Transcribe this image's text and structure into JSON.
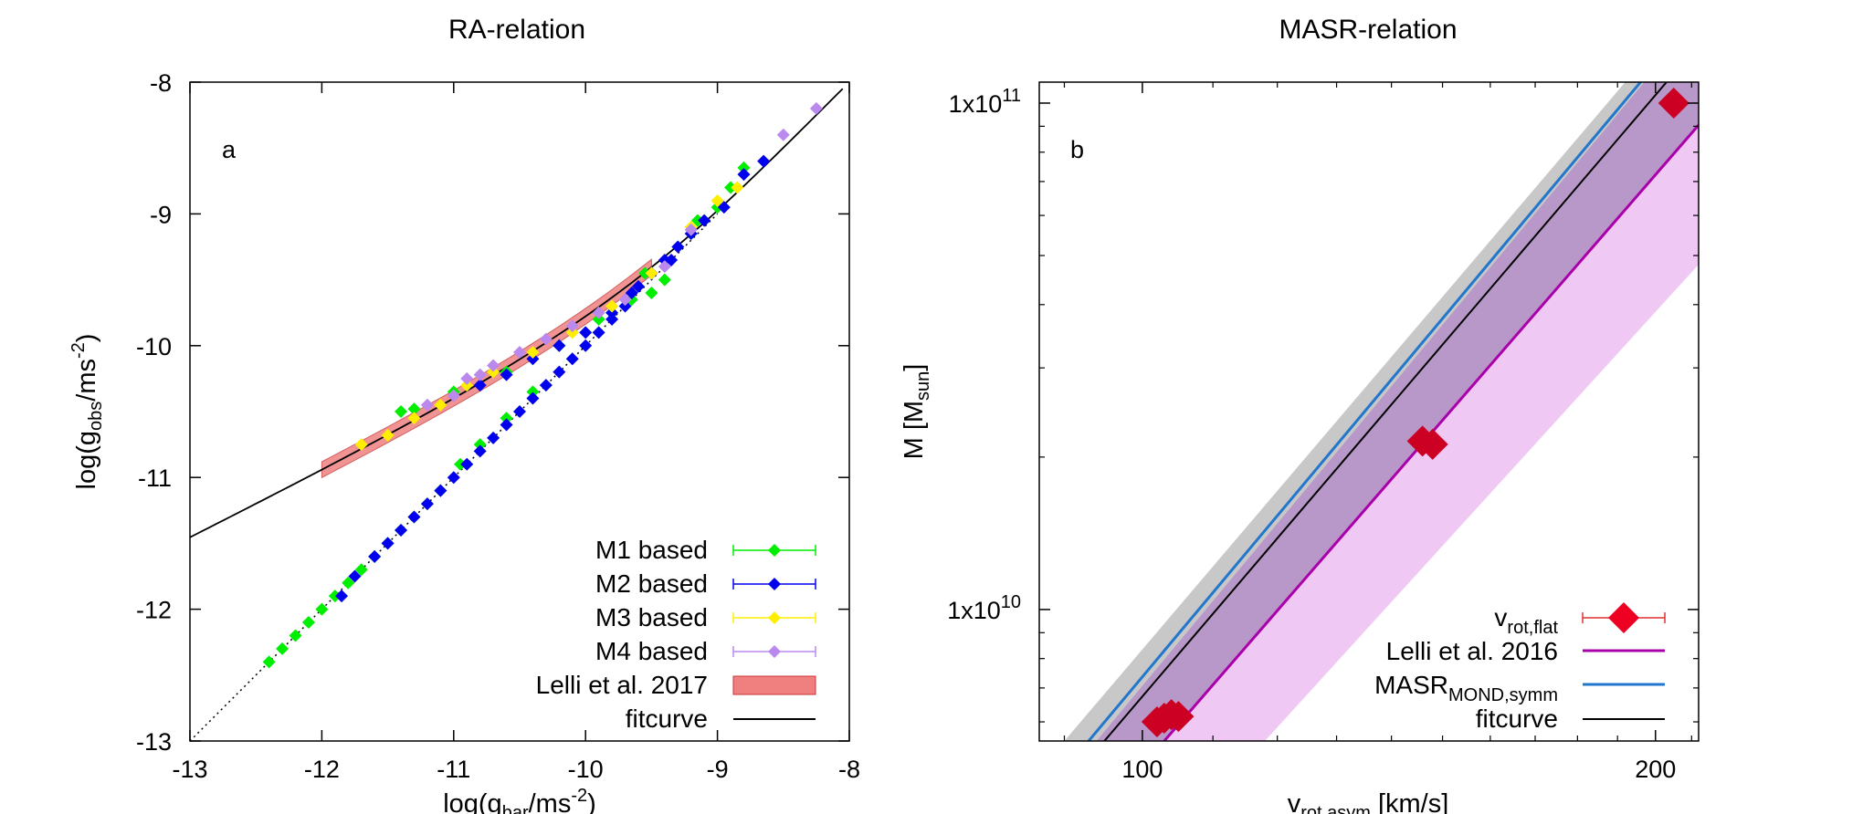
{
  "chart_data": [
    {
      "type": "scatter",
      "panel_label": "a",
      "title": "RA-relation",
      "xlabel": {
        "pre": "log(g",
        "sub": "bar",
        "mid": "/ms",
        "sup": "-2",
        "post": ")"
      },
      "ylabel": {
        "pre": "log(g",
        "sub": "obs",
        "mid": "/ms",
        "sup": "-2",
        "post": ")"
      },
      "xlim": [
        -13,
        -8
      ],
      "ylim": [
        -13,
        -8
      ],
      "xticks": [
        "-13",
        "-12",
        "-11",
        "-10",
        "-9",
        "-8"
      ],
      "yticks": [
        "-13",
        "-12",
        "-11",
        "-10",
        "-9",
        "-8"
      ],
      "legend_position": "bottom-right",
      "series": [
        {
          "name": "M1 based",
          "color": "#00ee00",
          "marker": "diamond",
          "points": [
            [
              -12.4,
              -12.4
            ],
            [
              -12.3,
              -12.3
            ],
            [
              -12.2,
              -12.2
            ],
            [
              -12.1,
              -12.1
            ],
            [
              -12.0,
              -12.0
            ],
            [
              -11.9,
              -11.9
            ],
            [
              -11.8,
              -11.8
            ],
            [
              -11.7,
              -11.7
            ],
            [
              -11.6,
              -11.6
            ],
            [
              -11.5,
              -11.5
            ],
            [
              -11.4,
              -11.4
            ],
            [
              -11.3,
              -11.3
            ],
            [
              -11.2,
              -11.2
            ],
            [
              -11.1,
              -11.1
            ],
            [
              -10.95,
              -10.9
            ],
            [
              -10.8,
              -10.75
            ],
            [
              -10.6,
              -10.55
            ],
            [
              -10.4,
              -10.35
            ],
            [
              -11.4,
              -10.5
            ],
            [
              -11.3,
              -10.48
            ],
            [
              -11.0,
              -10.35
            ],
            [
              -10.6,
              -10.2
            ],
            [
              -10.2,
              -10.0
            ],
            [
              -9.9,
              -9.8
            ],
            [
              -9.8,
              -9.75
            ],
            [
              -9.65,
              -9.65
            ],
            [
              -9.55,
              -9.45
            ],
            [
              -9.5,
              -9.6
            ],
            [
              -9.4,
              -9.5
            ],
            [
              -9.2,
              -9.15
            ],
            [
              -9.15,
              -9.05
            ],
            [
              -9.0,
              -8.95
            ],
            [
              -8.9,
              -8.8
            ],
            [
              -8.8,
              -8.65
            ]
          ]
        },
        {
          "name": "M2 based",
          "color": "#0000ee",
          "marker": "diamond",
          "points": [
            [
              -11.85,
              -11.9
            ],
            [
              -11.75,
              -11.75
            ],
            [
              -11.6,
              -11.6
            ],
            [
              -11.5,
              -11.5
            ],
            [
              -11.4,
              -11.4
            ],
            [
              -11.3,
              -11.3
            ],
            [
              -11.2,
              -11.2
            ],
            [
              -11.1,
              -11.1
            ],
            [
              -11.0,
              -11.0
            ],
            [
              -10.9,
              -10.9
            ],
            [
              -10.8,
              -10.8
            ],
            [
              -10.7,
              -10.7
            ],
            [
              -10.6,
              -10.6
            ],
            [
              -10.5,
              -10.5
            ],
            [
              -10.4,
              -10.4
            ],
            [
              -10.3,
              -10.3
            ],
            [
              -10.2,
              -10.2
            ],
            [
              -10.1,
              -10.1
            ],
            [
              -10.0,
              -10.0
            ],
            [
              -9.9,
              -9.9
            ],
            [
              -9.8,
              -9.8
            ],
            [
              -9.7,
              -9.7
            ],
            [
              -9.6,
              -9.55
            ],
            [
              -9.5,
              -9.45
            ],
            [
              -9.4,
              -9.35
            ],
            [
              -9.3,
              -9.25
            ],
            [
              -9.2,
              -9.15
            ],
            [
              -9.1,
              -9.05
            ],
            [
              -8.95,
              -8.95
            ],
            [
              -8.8,
              -8.7
            ],
            [
              -8.65,
              -8.6
            ],
            [
              -10.8,
              -10.3
            ],
            [
              -10.6,
              -10.22
            ],
            [
              -10.4,
              -10.1
            ],
            [
              -10.2,
              -10.0
            ],
            [
              -10.0,
              -9.9
            ],
            [
              -9.8,
              -9.75
            ],
            [
              -9.65,
              -9.6
            ],
            [
              -9.5,
              -9.45
            ],
            [
              -9.35,
              -9.35
            ]
          ]
        },
        {
          "name": "M3 based",
          "color": "#ffee00",
          "marker": "diamond",
          "points": [
            [
              -11.7,
              -10.75
            ],
            [
              -11.5,
              -10.68
            ],
            [
              -11.3,
              -10.55
            ],
            [
              -11.1,
              -10.45
            ],
            [
              -10.9,
              -10.3
            ],
            [
              -10.7,
              -10.2
            ],
            [
              -10.4,
              -10.05
            ],
            [
              -10.1,
              -9.9
            ],
            [
              -9.8,
              -9.7
            ],
            [
              -9.5,
              -9.45
            ],
            [
              -9.2,
              -9.1
            ],
            [
              -9.0,
              -8.9
            ],
            [
              -8.85,
              -8.8
            ]
          ]
        },
        {
          "name": "M4 based",
          "color": "#bb88ee",
          "marker": "diamond",
          "points": [
            [
              -11.2,
              -10.45
            ],
            [
              -11.0,
              -10.38
            ],
            [
              -10.9,
              -10.25
            ],
            [
              -10.8,
              -10.22
            ],
            [
              -10.7,
              -10.15
            ],
            [
              -10.5,
              -10.05
            ],
            [
              -10.3,
              -9.95
            ],
            [
              -10.1,
              -9.85
            ],
            [
              -9.9,
              -9.75
            ],
            [
              -9.7,
              -9.65
            ],
            [
              -9.4,
              -9.4
            ],
            [
              -9.2,
              -9.12
            ],
            [
              -8.5,
              -8.4
            ],
            [
              -8.25,
              -8.2
            ]
          ]
        }
      ],
      "band": {
        "name": "Lelli et al. 2017",
        "color": "#f08080",
        "x_range": [
          -12,
          -9.5
        ]
      },
      "fitcurve": {
        "name": "fitcurve",
        "color": "#000000",
        "x_range": [
          -13,
          -8
        ]
      },
      "identity_line": {
        "style": "dotted",
        "x_range": [
          -13,
          -9
        ]
      }
    },
    {
      "type": "line",
      "panel_label": "b",
      "title": "MASR-relation",
      "xlabel": {
        "pre": "v",
        "sub": "rot,asym",
        "post": " [km/s]"
      },
      "ylabel": {
        "pre": "M [M",
        "sub": "sun",
        "post": "]"
      },
      "xscale": "log",
      "yscale": "log",
      "xlim": [
        87,
        212
      ],
      "ylim": [
        5500000000.0,
        110000000000.0
      ],
      "xticks": [
        {
          "value": 100,
          "label": "100"
        },
        {
          "value": 200,
          "label": "200"
        }
      ],
      "yticks": [
        {
          "value": 10000000000.0,
          "mant": "1x10",
          "exp": "10"
        },
        {
          "value": 100000000000.0,
          "mant": "1x10",
          "exp": "11"
        }
      ],
      "legend_position": "bottom-right",
      "points": {
        "name": "v",
        "name_sub": "rot,flat",
        "color": "#cc0022",
        "data": [
          [
            102,
            6000000000.0
          ],
          [
            103,
            6100000000.0
          ],
          [
            104,
            6200000000.0
          ],
          [
            105,
            6150000000.0
          ],
          [
            146,
            21500000000.0
          ],
          [
            148,
            21200000000.0
          ],
          [
            205,
            100000000000.0
          ]
        ]
      },
      "lines": [
        {
          "name": "Lelli et al. 2016",
          "color": "#aa00aa",
          "data": [
            [
              103,
              5500000000.0
            ],
            [
              212,
              90500000000.0
            ]
          ]
        },
        {
          "name": "MASR",
          "name_sub": "MOND,symm",
          "color": "#2277cc",
          "data": [
            [
              93,
              5500000000.0
            ],
            [
              196,
              110000000000.0
            ]
          ]
        },
        {
          "name": "fitcurve",
          "color": "#000000",
          "data": [
            [
              95,
              5500000000.0
            ],
            [
              203,
              110000000000.0
            ]
          ]
        }
      ],
      "bands": [
        {
          "name": "gray",
          "color": "#c8c8c8",
          "upper": [
            [
              90,
              5500000000.0
            ],
            [
              192,
              110000000000.0
            ]
          ],
          "lower": [
            [
              102,
              5500000000.0
            ],
            [
              212,
              90000000000.0
            ]
          ]
        },
        {
          "name": "purple",
          "color": "#b898c8",
          "upper": [
            [
              94,
              5500000000.0
            ],
            [
              197,
              110000000000.0
            ]
          ],
          "lower": [
            [
              103,
              5500000000.0
            ],
            [
              212,
              90000000000.0
            ]
          ]
        },
        {
          "name": "pink",
          "color": "#f0c8f4",
          "upper": [
            [
              103,
              5500000000.0
            ],
            [
              212,
              90000000000.0
            ]
          ],
          "lower": [
            [
              118,
              5500000000.0
            ],
            [
              212,
              48000000000.0
            ]
          ]
        }
      ]
    }
  ]
}
